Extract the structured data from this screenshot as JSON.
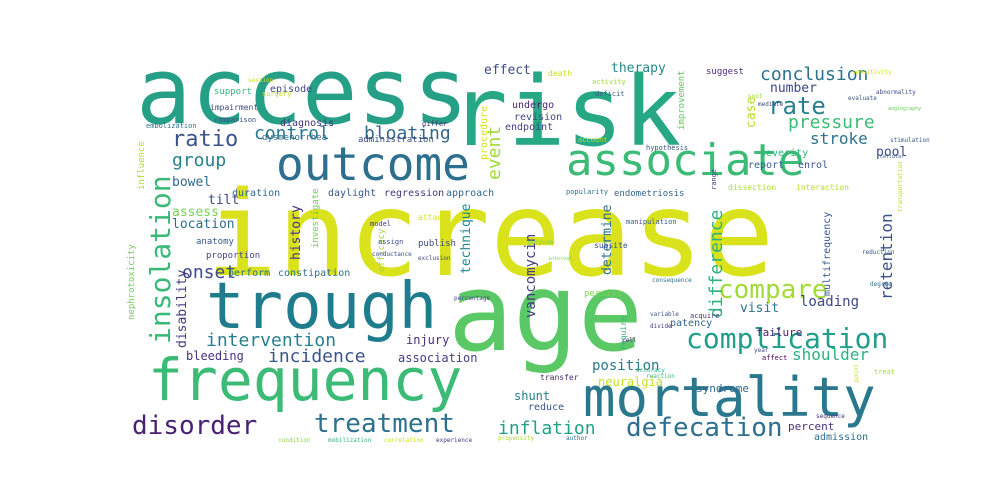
{
  "wordcloud": {
    "words": [
      {
        "text": "increase",
        "color": "#d9e21b"
      },
      {
        "text": "access",
        "color": "#25a087"
      },
      {
        "text": "risk",
        "color": "#26a884"
      },
      {
        "text": "age",
        "color": "#5ac864"
      },
      {
        "text": "trough",
        "color": "#1f7c8c"
      },
      {
        "text": "frequency",
        "color": "#3bbb75"
      },
      {
        "text": "mortality",
        "color": "#2a788e"
      },
      {
        "text": "outcome",
        "color": "#2c6f8e"
      },
      {
        "text": "associate",
        "color": "#3bbb75"
      },
      {
        "text": "insolation",
        "color": "#39b977"
      },
      {
        "text": "complication",
        "color": "#1f9e89"
      },
      {
        "text": "compare",
        "color": "#a2da37"
      },
      {
        "text": "disorder",
        "color": "#482173"
      },
      {
        "text": "treatment",
        "color": "#2d718e"
      },
      {
        "text": "defecation",
        "color": "#2e6e8e"
      },
      {
        "text": "ratio",
        "color": "#3b528b"
      },
      {
        "text": "rate",
        "color": "#277f8e"
      },
      {
        "text": "conclusion",
        "color": "#2c728e"
      },
      {
        "text": "pressure",
        "color": "#3dbc74"
      },
      {
        "text": "control",
        "color": "#2a788e"
      },
      {
        "text": "bloating",
        "color": "#31688e"
      },
      {
        "text": "group",
        "color": "#27808e"
      },
      {
        "text": "onset",
        "color": "#3e4a89"
      },
      {
        "text": "intervention",
        "color": "#277f8e"
      },
      {
        "text": "incidence",
        "color": "#39558c"
      },
      {
        "text": "event",
        "color": "#a0da39"
      },
      {
        "text": "inflation",
        "color": "#1fa187"
      },
      {
        "text": "difference",
        "color": "#2db27d"
      },
      {
        "text": "retention",
        "color": "#3b528b"
      },
      {
        "text": "stroke",
        "color": "#2c728e"
      },
      {
        "text": "shoulder",
        "color": "#2db27d"
      },
      {
        "text": "position",
        "color": "#2a788e"
      },
      {
        "text": "loading",
        "color": "#3e4989"
      },
      {
        "text": "vancomycin",
        "color": "#443983"
      },
      {
        "text": "disability",
        "color": "#453781"
      },
      {
        "text": "history",
        "color": "#46327e"
      },
      {
        "text": "technique",
        "color": "#24878e"
      },
      {
        "text": "determine",
        "color": "#2c718e"
      },
      {
        "text": "effect",
        "color": "#3e4c8a"
      },
      {
        "text": "therapy",
        "color": "#23888e"
      },
      {
        "text": "bowel",
        "color": "#31688e"
      },
      {
        "text": "tilt",
        "color": "#3f4788"
      },
      {
        "text": "assess",
        "color": "#7ad151"
      },
      {
        "text": "location",
        "color": "#2d708e"
      },
      {
        "text": "number",
        "color": "#414487"
      },
      {
        "text": "visit",
        "color": "#2c718e"
      },
      {
        "text": "pool",
        "color": "#3e4989"
      },
      {
        "text": "case",
        "color": "#b5de2b"
      },
      {
        "text": "bleeding",
        "color": "#46327e"
      },
      {
        "text": "association",
        "color": "#424086"
      },
      {
        "text": "injury",
        "color": "#46337f"
      },
      {
        "text": "shunt",
        "color": "#277f8e"
      },
      {
        "text": "neuralgia",
        "color": "#c2df23"
      },
      {
        "text": "percent",
        "color": "#46337f"
      },
      {
        "text": "syndrome",
        "color": "#31688e"
      },
      {
        "text": "failure",
        "color": "#481f70"
      },
      {
        "text": "reduce",
        "color": "#3b528b"
      },
      {
        "text": "patency",
        "color": "#34618d"
      },
      {
        "text": "admission",
        "color": "#2e6f8e"
      },
      {
        "text": "severity",
        "color": "#2fb47c"
      },
      {
        "text": "report",
        "color": "#355f8d"
      },
      {
        "text": "enrol",
        "color": "#3a538b"
      },
      {
        "text": "diagnosis",
        "color": "#46317e"
      },
      {
        "text": "episode",
        "color": "#3f4788"
      },
      {
        "text": "undergo",
        "color": "#482374"
      },
      {
        "text": "revision",
        "color": "#3e4a89"
      },
      {
        "text": "endpoint",
        "color": "#433e85"
      },
      {
        "text": "procedure",
        "color": "#d2e21b"
      },
      {
        "text": "improvement",
        "color": "#5ec962"
      },
      {
        "text": "suggest",
        "color": "#472c7a"
      },
      {
        "text": "duration",
        "color": "#32648e"
      },
      {
        "text": "daylight",
        "color": "#3a548c"
      },
      {
        "text": "regression",
        "color": "#453882"
      },
      {
        "text": "approach",
        "color": "#31688e"
      },
      {
        "text": "perform",
        "color": "#2b758e"
      },
      {
        "text": "constipation",
        "color": "#2d708e"
      },
      {
        "text": "investigate",
        "color": "#6ccd5a"
      },
      {
        "text": "efficacy",
        "color": "#a5db36"
      },
      {
        "text": "anatomy",
        "color": "#38578c"
      },
      {
        "text": "proportion",
        "color": "#404588"
      },
      {
        "text": "publish",
        "color": "#3f4889"
      },
      {
        "text": "persist",
        "color": "#7fd34e"
      },
      {
        "text": "endometriosis",
        "color": "#33638d"
      },
      {
        "text": "dysmenorrhea",
        "color": "#2e6d8e"
      },
      {
        "text": "administration",
        "color": "#3d4e8a"
      },
      {
        "text": "support",
        "color": "#35b779"
      },
      {
        "text": "impairment",
        "color": "#3e4a89"
      },
      {
        "text": "influence",
        "color": "#b2dd2d"
      },
      {
        "text": "nephrotoxicity",
        "color": "#73d056"
      },
      {
        "text": "multifrequency",
        "color": "#38588c"
      },
      {
        "text": "subsite",
        "color": "#3b528b"
      },
      {
        "text": "require",
        "color": "#2fb47c"
      },
      {
        "text": "attack",
        "color": "#d8e219"
      },
      {
        "text": "transfer",
        "color": "#472d7b"
      },
      {
        "text": "death",
        "color": "#c8e020"
      },
      {
        "text": "dissection",
        "color": "#a8db34"
      },
      {
        "text": "interaction",
        "color": "#b8de29"
      },
      {
        "text": "hypothesis",
        "color": "#39568c"
      },
      {
        "text": "deficit",
        "color": "#34618d"
      },
      {
        "text": "range",
        "color": "#3f4788"
      },
      {
        "text": "popularity",
        "color": "#2a788e"
      },
      {
        "text": "comparison",
        "color": "#3e4989"
      },
      {
        "text": "embolization",
        "color": "#2d718e"
      },
      {
        "text": "differ",
        "color": "#46337f"
      },
      {
        "text": "activity",
        "color": "#a0da39"
      },
      {
        "text": "manipulation",
        "color": "#38598c"
      },
      {
        "text": "model",
        "color": "#46307e"
      },
      {
        "text": "assign",
        "color": "#3e4c8a"
      },
      {
        "text": "conductance",
        "color": "#3e4989"
      },
      {
        "text": "exclusion",
        "color": "#3f4788"
      },
      {
        "text": "surgery",
        "color": "#c2df23"
      },
      {
        "text": "account",
        "color": "#b5de2b"
      },
      {
        "text": "session",
        "color": "#cae11f"
      },
      {
        "text": "purpose",
        "color": "#7ad151"
      },
      {
        "text": "consequence",
        "color": "#2c718e"
      },
      {
        "text": "percentage",
        "color": "#3f4788"
      },
      {
        "text": "condition",
        "color": "#90d743"
      },
      {
        "text": "mobilization",
        "color": "#31b57b"
      },
      {
        "text": "correlation",
        "color": "#c8e020"
      },
      {
        "text": "experience",
        "color": "#453781"
      },
      {
        "text": "propensity",
        "color": "#a8db34"
      },
      {
        "text": "author",
        "color": "#2e6e8e"
      },
      {
        "text": "variable",
        "color": "#3a548c"
      },
      {
        "text": "acquire",
        "color": "#46327e"
      },
      {
        "text": "reaction",
        "color": "#3dbc74"
      },
      {
        "text": "divide",
        "color": "#453581"
      },
      {
        "text": "affect",
        "color": "#440154"
      },
      {
        "text": "treat",
        "color": "#aadc32"
      },
      {
        "text": "point",
        "color": "#c8e020"
      },
      {
        "text": "reduction",
        "color": "#3b528b"
      },
      {
        "text": "degree",
        "color": "#2c718e"
      },
      {
        "text": "transportation",
        "color": "#b5de2b"
      },
      {
        "text": "stimulation",
        "color": "#38598c"
      },
      {
        "text": "abnormality",
        "color": "#3f4788"
      },
      {
        "text": "evaluate",
        "color": "#3a548c"
      },
      {
        "text": "mediate",
        "color": "#3e4989"
      },
      {
        "text": "sensitivity",
        "color": "#d8e219"
      },
      {
        "text": "angiography",
        "color": "#6ccd5a"
      },
      {
        "text": "cellular",
        "color": "#39568c"
      },
      {
        "text": "year",
        "color": "#3e4989"
      },
      {
        "text": "cell",
        "color": "#46307e"
      },
      {
        "text": "interval",
        "color": "#7fd34e"
      },
      {
        "text": "spot",
        "color": "#a2da37"
      },
      {
        "text": "sequence",
        "color": "#46327e"
      },
      {
        "text": "accuracy",
        "color": "#2fb47c"
      }
    ]
  }
}
